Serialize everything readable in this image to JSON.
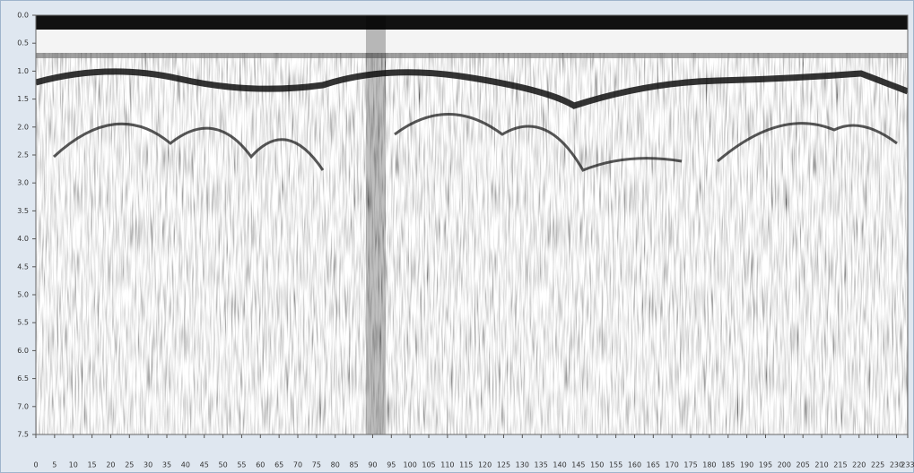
{
  "chart_data": {
    "type": "radargram",
    "xlim": [
      0,
      233
    ],
    "ylim": [
      0,
      7.5
    ],
    "y_reversed": true,
    "xticks": [
      0,
      5,
      10,
      15,
      20,
      25,
      30,
      35,
      40,
      45,
      50,
      55,
      60,
      65,
      70,
      75,
      80,
      85,
      90,
      95,
      100,
      105,
      110,
      115,
      120,
      125,
      130,
      135,
      140,
      145,
      150,
      155,
      160,
      165,
      170,
      175,
      180,
      185,
      190,
      195,
      200,
      205,
      210,
      215,
      220,
      225,
      230,
      233
    ],
    "yticks": [
      {
        "value": 0,
        "label": "0.0"
      },
      0.5,
      {
        "value": 1,
        "label": "1.0"
      },
      1.5,
      {
        "value": 2,
        "label": "2.0"
      },
      2.5,
      {
        "value": 3,
        "label": "3.0"
      },
      3.5,
      {
        "value": 4,
        "label": "4.0"
      },
      4.5,
      {
        "value": 5,
        "label": "5.0"
      },
      5.5,
      {
        "value": 6,
        "label": "6.0"
      },
      6.5,
      {
        "value": 7,
        "label": "7.0"
      },
      7.5
    ]
  }
}
